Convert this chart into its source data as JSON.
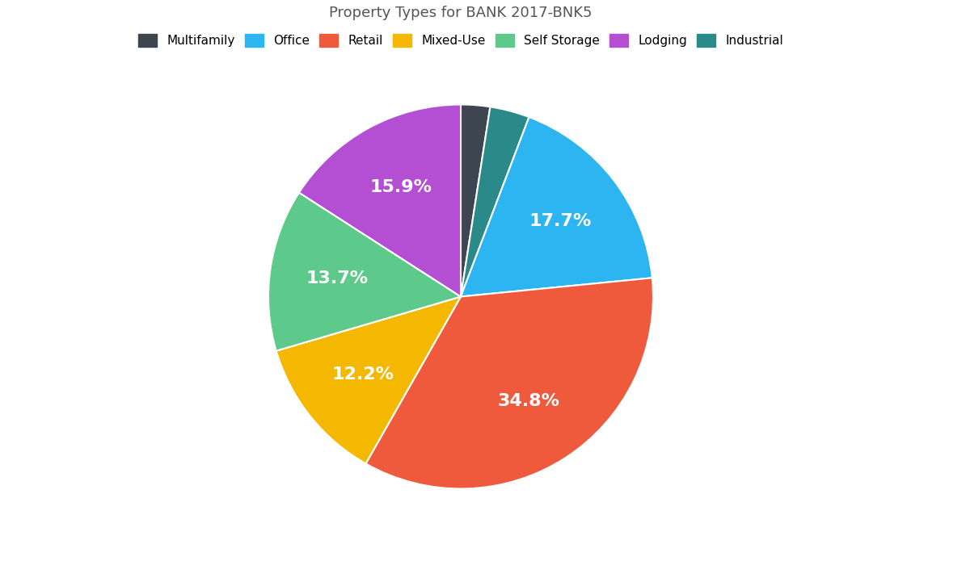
{
  "title": "Property Types for BANK 2017-BNK5",
  "slices_ordered": [
    {
      "label": "Multifamily",
      "value": 2.2,
      "color": "#3d4550"
    },
    {
      "label": "Industrial",
      "value": 3.0,
      "color": "#2a8a8a"
    },
    {
      "label": "Office",
      "value": 15.9,
      "color": "#2cb5f0"
    },
    {
      "label": "Retail",
      "value": 31.3,
      "color": "#f05a3c"
    },
    {
      "label": "Mixed-Use",
      "value": 11.0,
      "color": "#f5b800"
    },
    {
      "label": "Self Storage",
      "value": 12.3,
      "color": "#5dc98a"
    },
    {
      "label": "Lodging",
      "value": 14.3,
      "color": "#b44fd4"
    }
  ],
  "legend_order": [
    {
      "label": "Multifamily",
      "color": "#3d4550"
    },
    {
      "label": "Office",
      "color": "#2cb5f0"
    },
    {
      "label": "Retail",
      "color": "#f05a3c"
    },
    {
      "label": "Mixed-Use",
      "color": "#f5b800"
    },
    {
      "label": "Self Storage",
      "color": "#5dc98a"
    },
    {
      "label": "Lodging",
      "color": "#b44fd4"
    },
    {
      "label": "Industrial",
      "color": "#2a8a8a"
    }
  ],
  "wedge_edge_color": "white",
  "wedge_edge_width": 1.5,
  "label_color": "white",
  "label_fontsize": 16,
  "label_fontweight": "bold",
  "title_fontsize": 13,
  "background_color": "#ffffff",
  "legend_fontsize": 11,
  "startangle": 90,
  "pct_min_display": 5.0
}
